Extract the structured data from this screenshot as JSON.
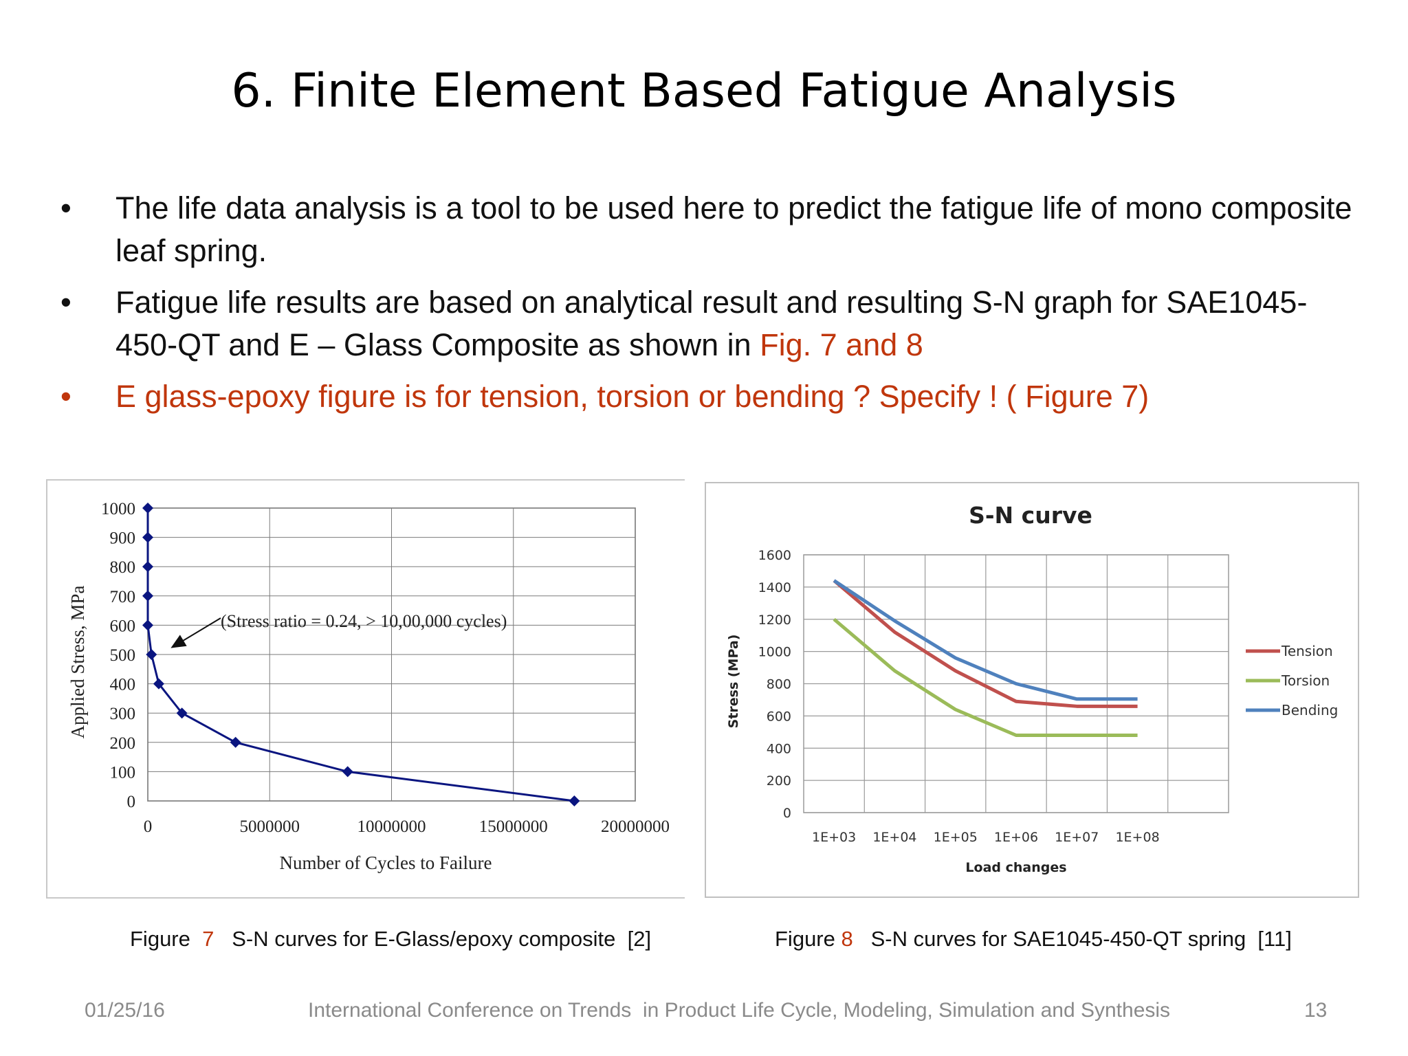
{
  "slide": {
    "title": "6. Finite Element Based Fatigue Analysis",
    "bullet_char": "•",
    "bullets": [
      {
        "text": "The life data analysis is a tool to be used here to predict the fatigue life of mono composite leaf spring."
      },
      {
        "text": "Fatigue life results are based on analytical result and resulting S-N graph for SAE1045-450-QT  and E – Glass Composite as shown in ",
        "highlight": "Fig. 7 and 8"
      },
      {
        "text": "E glass-epoxy figure is for tension, torsion or bending ? Specify ! ( Figure 7)"
      }
    ]
  },
  "captions": {
    "fig7": {
      "prefix": "Figure ",
      "num": "7",
      "text": "S-N curves for E-Glass/epoxy composite  [2]"
    },
    "fig8": {
      "prefix": "Figure ",
      "num": "8",
      "text": "S-N curves for SAE1045-450-QT spring  [11]"
    }
  },
  "footer": {
    "date": "01/25/16",
    "conference": "International Conference on Trends  in Product Life Cycle, Modeling, Simulation and Synthesis",
    "page": "13"
  },
  "colors": {
    "accent_red": "#c0360c",
    "fig7_series": "#0a1580",
    "tension": "#c0504d",
    "torsion": "#9bbb59",
    "bending": "#4f81bd"
  },
  "chart_data": [
    {
      "type": "scatter",
      "title": "",
      "xlabel": "Number of Cycles to Failure",
      "ylabel": "Applied Stress, MPa",
      "xlim": [
        0,
        20000000
      ],
      "ylim": [
        0,
        1000
      ],
      "x_ticks": [
        0,
        5000000,
        10000000,
        15000000,
        20000000
      ],
      "x_tick_labels": [
        "0",
        "5000000",
        "10000000",
        "15000000",
        "20000000"
      ],
      "y_ticks": [
        0,
        100,
        200,
        300,
        400,
        500,
        600,
        700,
        800,
        900,
        1000
      ],
      "y_tick_labels": [
        "0",
        "100",
        "200",
        "300",
        "400",
        "500",
        "600",
        "700",
        "800",
        "900",
        "1000"
      ],
      "grid": true,
      "connected": true,
      "marker": "diamond",
      "series": [
        {
          "x": [
            0,
            0,
            0,
            0,
            0,
            150000,
            450000,
            1400000,
            3600000,
            8200000,
            17500000
          ],
          "y": [
            1000,
            900,
            800,
            700,
            600,
            500,
            400,
            300,
            200,
            100,
            0
          ]
        }
      ],
      "annotations": [
        {
          "text": "(Stress ratio = 0.24, > 10,00,000 cycles)",
          "x": 1000000,
          "y": 525,
          "arrow": true
        }
      ]
    },
    {
      "type": "line",
      "title": "S-N curve",
      "xlabel": "Load changes",
      "ylabel": "Stress (MPa)",
      "categories": [
        "1E+03",
        "1E+04",
        "1E+05",
        "1E+06",
        "1E+07",
        "1E+08"
      ],
      "ylim": [
        0,
        1600
      ],
      "y_ticks": [
        0,
        200,
        400,
        600,
        800,
        1000,
        1200,
        1400,
        1600
      ],
      "grid": true,
      "legend": "right",
      "series": [
        {
          "name": "Tension",
          "values": [
            1440,
            1120,
            880,
            690,
            660,
            660
          ]
        },
        {
          "name": "Torsion",
          "values": [
            1200,
            880,
            640,
            480,
            480,
            480
          ]
        },
        {
          "name": "Bending",
          "values": [
            1440,
            1190,
            960,
            800,
            705,
            705
          ]
        }
      ]
    }
  ]
}
